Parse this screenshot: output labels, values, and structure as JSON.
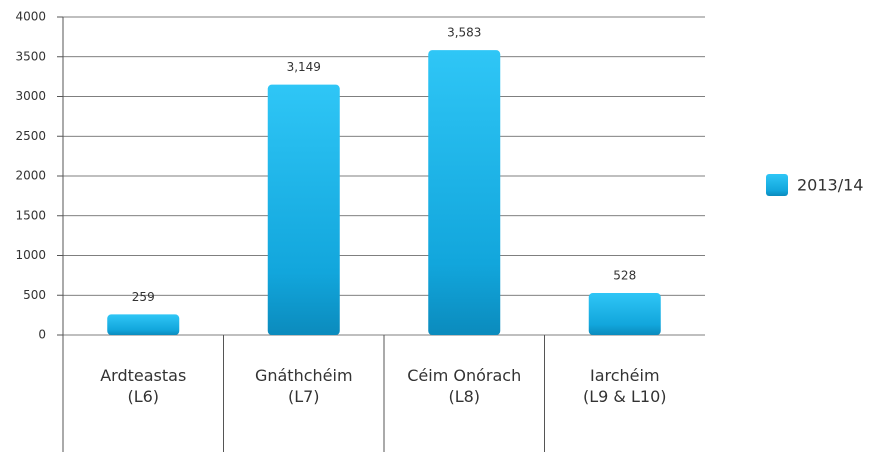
{
  "chart_data": {
    "type": "bar",
    "categories": [
      "Ardteastas\n(L6)",
      "Gnáthchéim\n(L7)",
      "Céim Onórach\n(L8)",
      "Iarchéim\n(L9 & L10)"
    ],
    "series": [
      {
        "name": "2013/14",
        "color": "#14aee6",
        "values": [
          259,
          3149,
          3583,
          528
        ],
        "value_labels": [
          "259",
          "3,149",
          "3,583",
          "528"
        ]
      }
    ],
    "ylim": [
      0,
      4000
    ],
    "yticks": [
      0,
      500,
      1000,
      1500,
      2000,
      2500,
      3000,
      3500,
      4000
    ],
    "grid": true,
    "legend": "right"
  }
}
